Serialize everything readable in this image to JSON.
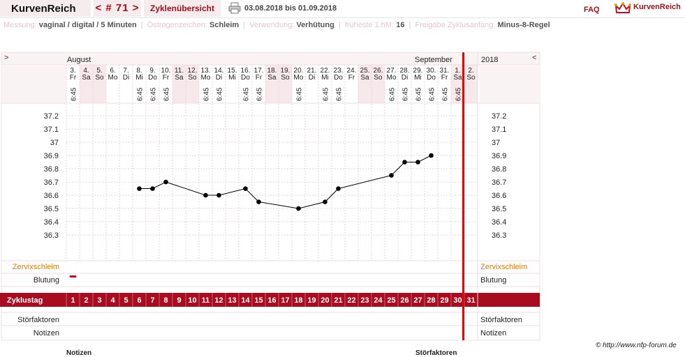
{
  "header": {
    "app_name": "KurvenReich",
    "cycle_nav": "< # 71 >",
    "overview_label": "Zyklenübersicht",
    "print_icon": "printer-icon",
    "date_range": "03.08.2018 bis 01.09.2018",
    "faq_label": "FAQ",
    "brand_label": "KurvenReich",
    "brand_icon": "crown-icon"
  },
  "info": [
    {
      "key": "Messung:",
      "value": "vaginal / digital / 5 Minuten"
    },
    {
      "key": "Östrogenzeichen:",
      "value": "Schleim"
    },
    {
      "key": "Verwendung:",
      "value": "Verhütung"
    },
    {
      "key": "früheste 1.hM:",
      "value": "16"
    },
    {
      "key": "Freigabe Zyklusanfang:",
      "value": "Minus-8-Regel"
    }
  ],
  "chart": {
    "nav_left": ">",
    "nav_right": "<",
    "year": "2018",
    "months": [
      {
        "label": "August",
        "start_col": 0
      },
      {
        "label": "September",
        "start_col": 29
      }
    ],
    "days": [
      {
        "d": "3.",
        "w": "Fr",
        "t": "6:45",
        "we": false
      },
      {
        "d": "4.",
        "w": "Sa",
        "t": "",
        "we": true
      },
      {
        "d": "5.",
        "w": "So",
        "t": "",
        "we": true
      },
      {
        "d": "6.",
        "w": "Mo",
        "t": "",
        "we": false
      },
      {
        "d": "7.",
        "w": "Di",
        "t": "",
        "we": false
      },
      {
        "d": "8.",
        "w": "Mi",
        "t": "6:45",
        "we": false
      },
      {
        "d": "9.",
        "w": "Do",
        "t": "6:45",
        "we": false
      },
      {
        "d": "10.",
        "w": "Fr",
        "t": "6:45",
        "we": false
      },
      {
        "d": "11.",
        "w": "Sa",
        "t": "",
        "we": true
      },
      {
        "d": "12.",
        "w": "So",
        "t": "",
        "we": true
      },
      {
        "d": "13.",
        "w": "Mo",
        "t": "6:45",
        "we": false
      },
      {
        "d": "14.",
        "w": "Di",
        "t": "6:45",
        "we": false
      },
      {
        "d": "15.",
        "w": "Mi",
        "t": "",
        "we": false
      },
      {
        "d": "16.",
        "w": "Do",
        "t": "6:45",
        "we": false
      },
      {
        "d": "17.",
        "w": "Fr",
        "t": "6:45",
        "we": false
      },
      {
        "d": "18.",
        "w": "Sa",
        "t": "",
        "we": true
      },
      {
        "d": "19.",
        "w": "So",
        "t": "",
        "we": true
      },
      {
        "d": "20.",
        "w": "Mo",
        "t": "6:45",
        "we": false
      },
      {
        "d": "21.",
        "w": "Di",
        "t": "",
        "we": false
      },
      {
        "d": "22.",
        "w": "Mi",
        "t": "6:45",
        "we": false
      },
      {
        "d": "23.",
        "w": "Do",
        "t": "6:45",
        "we": false
      },
      {
        "d": "24.",
        "w": "Fr",
        "t": "",
        "we": false
      },
      {
        "d": "25.",
        "w": "Sa",
        "t": "",
        "we": true
      },
      {
        "d": "26.",
        "w": "So",
        "t": "",
        "we": true
      },
      {
        "d": "27.",
        "w": "Mo",
        "t": "6:45",
        "we": false
      },
      {
        "d": "28.",
        "w": "Di",
        "t": "6:45",
        "we": false
      },
      {
        "d": "29.",
        "w": "Mi",
        "t": "6:45",
        "we": false
      },
      {
        "d": "30.",
        "w": "Do",
        "t": "6:45",
        "we": false
      },
      {
        "d": "31.",
        "w": "Fr",
        "t": "6:45",
        "we": false
      },
      {
        "d": "1.",
        "w": "Sa",
        "t": "6:45",
        "we": true
      },
      {
        "d": "2.",
        "w": "So",
        "t": "",
        "we": true
      }
    ],
    "y_ticks": [
      "37.2",
      "37.1",
      "37",
      "36.9",
      "36.8",
      "36.7",
      "36.6",
      "36.5",
      "36.4",
      "36.3"
    ],
    "rows": {
      "cervix": "Zervixschleim",
      "bleeding": "Blutung",
      "cycle_day": "Zyklustag",
      "disturb": "Störfaktoren",
      "notes": "Notizen"
    },
    "cycle_days": [
      "1",
      "2",
      "3",
      "4",
      "5",
      "6",
      "7",
      "8",
      "9",
      "10",
      "11",
      "12",
      "13",
      "14",
      "15",
      "16",
      "17",
      "18",
      "19",
      "20",
      "21",
      "22",
      "23",
      "24",
      "25",
      "26",
      "27",
      "28",
      "29",
      "30",
      "31"
    ],
    "cycle_marker_day": 30,
    "bleeding_day": 1
  },
  "chart_data": {
    "type": "line",
    "x": [
      1,
      6,
      7,
      8,
      11,
      12,
      14,
      15,
      18,
      20,
      21,
      25,
      26,
      27,
      28
    ],
    "values": [
      null,
      36.65,
      36.65,
      36.7,
      36.6,
      36.6,
      36.65,
      36.55,
      36.5,
      36.55,
      36.65,
      36.75,
      36.85,
      36.85,
      36.9
    ],
    "series": [
      {
        "name": "Temperatur",
        "x": [
          6,
          7,
          8,
          11,
          12,
          14,
          15,
          18,
          20,
          21,
          25,
          26,
          27,
          28
        ],
        "values": [
          36.65,
          36.65,
          36.7,
          36.6,
          36.6,
          36.65,
          36.55,
          36.5,
          36.55,
          36.65,
          36.75,
          36.85,
          36.85,
          36.9
        ]
      }
    ],
    "xlabel": "Zyklustag",
    "ylabel": "",
    "ylim": [
      36.3,
      37.2
    ],
    "grid": true
  },
  "footer": {
    "copyright": "© http://www.nfp-forum.de",
    "cut_left": "Notizen",
    "cut_right": "Störfaktoren"
  }
}
